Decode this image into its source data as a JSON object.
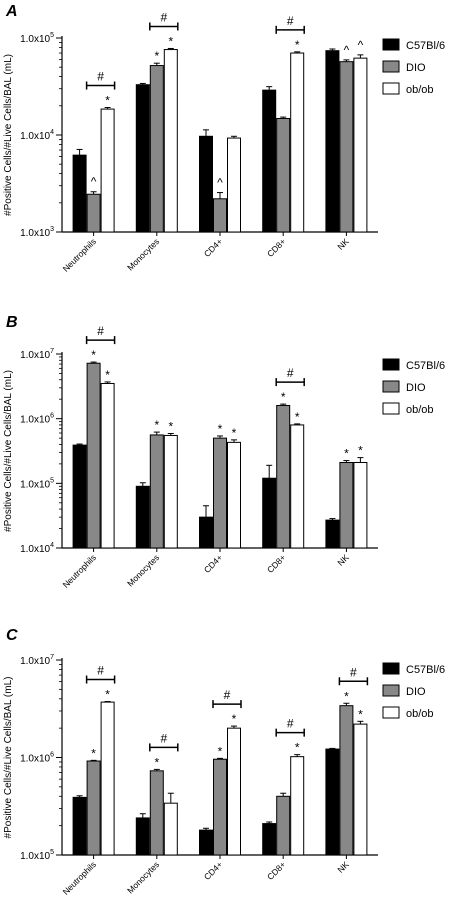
{
  "chart_data": [
    {
      "panel_label": "A",
      "type": "bar",
      "yscale": "log",
      "ylim": [
        1000,
        100000
      ],
      "ytick_labels": [
        [
          "1.0x10",
          "3"
        ],
        [
          "1.0x10",
          "4"
        ],
        [
          "1.0x10",
          "5"
        ]
      ],
      "ylabel": "#Positive Cells/#Live Cells/BAL (mL)",
      "categories": [
        "Neutrophils",
        "Monocytes",
        "CD4+",
        "CD8+",
        "NK"
      ],
      "series": [
        {
          "name": "C57Bl/6",
          "color": "#000000",
          "values": [
            6200,
            33000,
            9700,
            29000,
            74000
          ],
          "errors": [
            900,
            1000,
            1600,
            2500,
            3000
          ]
        },
        {
          "name": "DIO",
          "color": "#888888",
          "values": [
            2450,
            52000,
            2200,
            14800,
            57000
          ],
          "errors": [
            150,
            3000,
            350,
            500,
            2500
          ]
        },
        {
          "name": "ob/ob",
          "color": "#ffffff",
          "values": [
            18500,
            76000,
            9300,
            70000,
            62000
          ],
          "errors": [
            700,
            2000,
            400,
            2000,
            5000
          ]
        }
      ],
      "annotations": [
        {
          "category": 0,
          "series": 1,
          "text": "^"
        },
        {
          "category": 0,
          "series": 2,
          "text": "*"
        },
        {
          "category": 1,
          "series": 1,
          "text": "*"
        },
        {
          "category": 1,
          "series": 2,
          "text": "*"
        },
        {
          "category": 2,
          "series": 1,
          "text": "^"
        },
        {
          "category": 3,
          "series": 2,
          "text": "*"
        },
        {
          "category": 4,
          "series": 1,
          "text": "^"
        },
        {
          "category": 4,
          "series": 2,
          "text": "^"
        }
      ],
      "brackets": [
        {
          "category": 0,
          "from_series": 1,
          "to_series": 2,
          "text": "#"
        },
        {
          "category": 1,
          "from_series": 1,
          "to_series": 2,
          "text": "#"
        },
        {
          "category": 3,
          "from_series": 1,
          "to_series": 2,
          "text": "#"
        }
      ]
    },
    {
      "panel_label": "B",
      "type": "bar",
      "yscale": "log",
      "ylim": [
        10000,
        10000000
      ],
      "ytick_labels": [
        [
          "1.0x10",
          "4"
        ],
        [
          "1.0x10",
          "5"
        ],
        [
          "1.0x10",
          "6"
        ],
        [
          "1.0x10",
          "7"
        ]
      ],
      "ylabel": "#Positive Cells/#Live Cells/BAL (mL)",
      "categories": [
        "Neutrophils",
        "Monocytes",
        "CD4+",
        "CD8+",
        "NK"
      ],
      "series": [
        {
          "name": "C57Bl/6",
          "color": "#000000",
          "values": [
            390000,
            90000,
            30000,
            120000,
            27000
          ],
          "errors": [
            15000,
            12000,
            15000,
            70000,
            1500
          ]
        },
        {
          "name": "DIO",
          "color": "#888888",
          "values": [
            7200000,
            560000,
            500000,
            1600000,
            210000
          ],
          "errors": [
            300000,
            60000,
            40000,
            80000,
            15000
          ]
        },
        {
          "name": "ob/ob",
          "color": "#ffffff",
          "values": [
            3500000,
            550000,
            430000,
            800000,
            210000
          ],
          "errors": [
            200000,
            40000,
            40000,
            30000,
            40000
          ]
        }
      ],
      "annotations": [
        {
          "category": 0,
          "series": 1,
          "text": "*"
        },
        {
          "category": 0,
          "series": 2,
          "text": "*"
        },
        {
          "category": 1,
          "series": 1,
          "text": "*"
        },
        {
          "category": 1,
          "series": 2,
          "text": "*"
        },
        {
          "category": 2,
          "series": 1,
          "text": "*"
        },
        {
          "category": 2,
          "series": 2,
          "text": "*"
        },
        {
          "category": 3,
          "series": 1,
          "text": "*"
        },
        {
          "category": 3,
          "series": 2,
          "text": "*"
        },
        {
          "category": 4,
          "series": 1,
          "text": "*"
        },
        {
          "category": 4,
          "series": 2,
          "text": "*"
        }
      ],
      "brackets": [
        {
          "category": 0,
          "from_series": 1,
          "to_series": 2,
          "text": "#"
        },
        {
          "category": 3,
          "from_series": 1,
          "to_series": 2,
          "text": "#"
        }
      ]
    },
    {
      "panel_label": "C",
      "type": "bar",
      "yscale": "log",
      "ylim": [
        100000,
        10000000
      ],
      "ytick_labels": [
        [
          "1.0x10",
          "5"
        ],
        [
          "1.0x10",
          "6"
        ],
        [
          "1.0x10",
          "7"
        ]
      ],
      "ylabel": "#Positive Cells/#Live Cells/BAL (mL)",
      "categories": [
        "Neutrophils",
        "Monocytes",
        "CD4+",
        "CD8+",
        "NK"
      ],
      "series": [
        {
          "name": "C57Bl/6",
          "color": "#000000",
          "values": [
            390000,
            240000,
            180000,
            210000,
            1220000
          ],
          "errors": [
            15000,
            25000,
            8000,
            8000,
            20000
          ]
        },
        {
          "name": "DIO",
          "color": "#888888",
          "values": [
            920000,
            730000,
            960000,
            400000,
            3400000
          ],
          "errors": [
            15000,
            25000,
            20000,
            30000,
            200000
          ]
        },
        {
          "name": "ob/ob",
          "color": "#ffffff",
          "values": [
            3700000,
            340000,
            2000000,
            1020000,
            2200000
          ],
          "errors": [
            50000,
            90000,
            100000,
            50000,
            150000
          ]
        }
      ],
      "annotations": [
        {
          "category": 0,
          "series": 1,
          "text": "*"
        },
        {
          "category": 0,
          "series": 2,
          "text": "*"
        },
        {
          "category": 1,
          "series": 1,
          "text": "*"
        },
        {
          "category": 2,
          "series": 1,
          "text": "*"
        },
        {
          "category": 2,
          "series": 2,
          "text": "*"
        },
        {
          "category": 3,
          "series": 2,
          "text": "*"
        },
        {
          "category": 4,
          "series": 1,
          "text": "*"
        },
        {
          "category": 4,
          "series": 2,
          "text": "*"
        }
      ],
      "brackets": [
        {
          "category": 0,
          "from_series": 1,
          "to_series": 2,
          "text": "#"
        },
        {
          "category": 1,
          "from_series": 1,
          "to_series": 2,
          "text": "#"
        },
        {
          "category": 2,
          "from_series": 1,
          "to_series": 2,
          "text": "#"
        },
        {
          "category": 3,
          "from_series": 1,
          "to_series": 2,
          "text": "#"
        },
        {
          "category": 4,
          "from_series": 1,
          "to_series": 2,
          "text": "#"
        }
      ]
    }
  ]
}
